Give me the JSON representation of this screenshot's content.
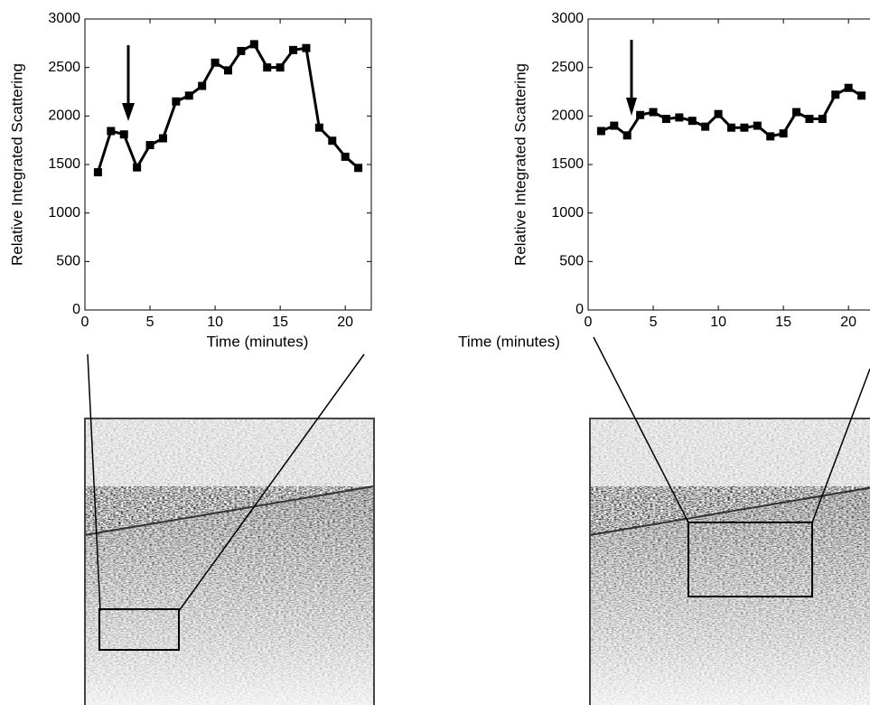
{
  "chart_data": [
    {
      "type": "line",
      "xlabel": "Time (minutes)",
      "ylabel": "Relative Integrated Scattering",
      "x": [
        1,
        2,
        3,
        4,
        5,
        6,
        7,
        8,
        9,
        10,
        11,
        12,
        13,
        14,
        15,
        16,
        17,
        18,
        19,
        20,
        21
      ],
      "series": [
        {
          "color": "#000000",
          "values": [
            1420,
            1845,
            1810,
            1470,
            1700,
            1770,
            2150,
            2210,
            2310,
            2550,
            2470,
            2670,
            2740,
            2500,
            2500,
            2680,
            2700,
            1880,
            1745,
            1580,
            1465
          ]
        }
      ],
      "xlim": [
        0,
        22
      ],
      "ylim": [
        0,
        3000
      ],
      "xticks": [
        0,
        5,
        10,
        15,
        20
      ],
      "yticks": [
        0,
        500,
        1000,
        1500,
        2000,
        2500,
        3000
      ]
    },
    {
      "type": "line",
      "xlabel": "Time (minutes)",
      "ylabel": "Relative Integrated Scattering",
      "x": [
        1,
        2,
        3,
        4,
        5,
        6,
        7,
        8,
        9,
        10,
        11,
        12,
        13,
        14,
        15,
        16,
        17,
        18,
        19,
        20,
        21
      ],
      "series": [
        {
          "color": "#000000",
          "values": [
            1845,
            1900,
            1800,
            2010,
            2040,
            1970,
            1985,
            1950,
            1890,
            2020,
            1880,
            1880,
            1900,
            1790,
            1820,
            2040,
            1970,
            1970,
            2220,
            2290,
            2210
          ]
        }
      ],
      "xlim": [
        0,
        22
      ],
      "ylim": [
        0,
        3000
      ],
      "xticks": [
        0,
        5,
        10,
        15,
        20
      ],
      "yticks": [
        0,
        500,
        1000,
        1500,
        2000,
        2500,
        3000
      ]
    }
  ]
}
